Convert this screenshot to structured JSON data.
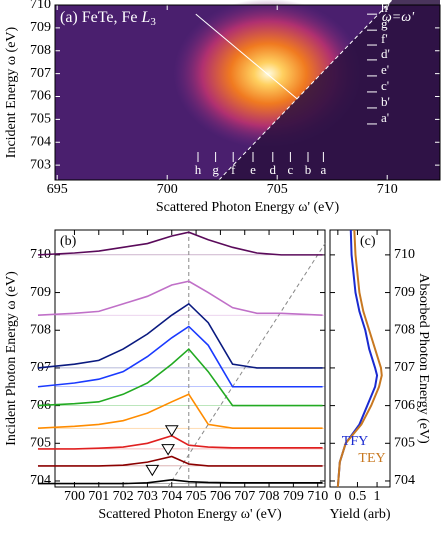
{
  "chart_data": [
    {
      "type": "heatmap",
      "title": "(a) FeTe, Fe ",
      "edge": "L",
      "edge_sub": "3",
      "annotation": "ω=ω'",
      "xlabel": "Scattered Photon Energy ω' (eV)",
      "ylabel": "Incident Energy ω (eV)",
      "xlim": [
        694.9,
        712.4
      ],
      "ylim": [
        702.35,
        710
      ],
      "xticks": [
        695,
        700,
        705,
        710
      ],
      "yticks": [
        703,
        704,
        705,
        706,
        707,
        708,
        709,
        710
      ],
      "cut_labels": [
        "h",
        "g",
        "f",
        "e",
        "d",
        "c",
        "b",
        "a"
      ],
      "cut_x": [
        701.4,
        702.2,
        703,
        703.9,
        704.8,
        705.6,
        706.4,
        707.1
      ],
      "primed_labels": [
        "h'",
        "g'",
        "f'",
        "d'",
        "e'",
        "c'",
        "b'",
        "a'"
      ],
      "primed_y": [
        709.6,
        708.9,
        708.25,
        707.6,
        706.9,
        706.2,
        705.5,
        704.8
      ]
    },
    {
      "type": "line",
      "panel_label": "(b)",
      "xlabel": "Scattered Photon Energy ω' (eV)",
      "ylabel": "Incident Photon Energy ω (eV)",
      "xlim": [
        699.2,
        710.3
      ],
      "ylim": [
        703.84,
        710.66
      ],
      "xticks": [
        700,
        701,
        702,
        703,
        704,
        705,
        706,
        707,
        708,
        709,
        710
      ],
      "yticks": [
        704,
        705,
        706,
        707,
        708,
        709,
        710
      ],
      "x": [
        698.5,
        700,
        701,
        702,
        703,
        704,
        704.7,
        705.5,
        706.5,
        707.5,
        708.5,
        710.2
      ],
      "series": [
        {
          "color": "#000000",
          "values": [
            703.93,
            703.93,
            703.93,
            703.93,
            703.95,
            704.03,
            703.98,
            703.96,
            703.95,
            703.95,
            703.95,
            703.95
          ]
        },
        {
          "color": "#8b0000",
          "values": [
            704.4,
            704.4,
            704.4,
            704.42,
            704.5,
            704.65,
            704.45,
            704.4,
            704.4,
            704.4,
            704.4,
            704.4
          ]
        },
        {
          "color": "#e02020",
          "values": [
            704.85,
            704.85,
            704.87,
            704.9,
            705.0,
            705.2,
            704.95,
            704.9,
            704.88,
            704.88,
            704.88,
            704.88
          ]
        },
        {
          "color": "#ff8c00",
          "values": [
            705.4,
            705.45,
            705.5,
            705.6,
            705.8,
            706.1,
            706.3,
            705.5,
            705.4,
            705.4,
            705.4,
            705.4
          ]
        },
        {
          "color": "#22aa22",
          "values": [
            706,
            706.05,
            706.1,
            706.3,
            706.6,
            707.1,
            707.5,
            706.9,
            706,
            706,
            706,
            706
          ]
        },
        {
          "color": "#1a3aff",
          "values": [
            706.5,
            706.6,
            706.7,
            706.9,
            707.3,
            707.8,
            708.1,
            707.6,
            706.5,
            706.5,
            706.5,
            706.5
          ]
        },
        {
          "color": "#0a1a80",
          "values": [
            707,
            707.1,
            707.2,
            707.5,
            707.9,
            708.4,
            708.7,
            708.2,
            707.1,
            707,
            707,
            707
          ]
        },
        {
          "color": "#c070c8",
          "values": [
            708.4,
            708.45,
            708.5,
            708.7,
            708.9,
            709.2,
            709.3,
            709,
            708.6,
            708.45,
            708.45,
            708.4
          ]
        },
        {
          "color": "#5a0a5a",
          "values": [
            710,
            710.05,
            710.1,
            710.2,
            710.3,
            710.5,
            710.6,
            710.4,
            710.2,
            710.05,
            710,
            710
          ]
        }
      ]
    },
    {
      "type": "profile",
      "panel_label": "(c)",
      "xlabel": "Yield (arb)",
      "ylabel": "Absorbed Photon Energy (eV)",
      "xlim": [
        -0.2,
        1.33
      ],
      "ylim": [
        703.84,
        710.66
      ],
      "xticks": [
        0,
        0.5,
        1
      ],
      "yticks": [
        704,
        705,
        706,
        707,
        708,
        709,
        710
      ],
      "y": [
        703.84,
        704.5,
        705,
        705.5,
        706,
        706.5,
        706.8,
        707,
        707.5,
        708,
        708.5,
        709,
        710,
        710.66
      ],
      "series": [
        {
          "name": "TFY",
          "color": "#1a2ad0",
          "values": [
            0,
            0.05,
            0.2,
            0.55,
            0.75,
            0.95,
            1.0,
            0.95,
            0.8,
            0.7,
            0.55,
            0.45,
            0.35,
            0.33
          ]
        },
        {
          "name": "TEY",
          "color": "#c87820",
          "values": [
            0,
            0.05,
            0.2,
            0.6,
            0.85,
            1.05,
            1.12,
            1.1,
            0.95,
            0.8,
            0.65,
            0.55,
            0.45,
            0.42
          ]
        }
      ]
    }
  ]
}
